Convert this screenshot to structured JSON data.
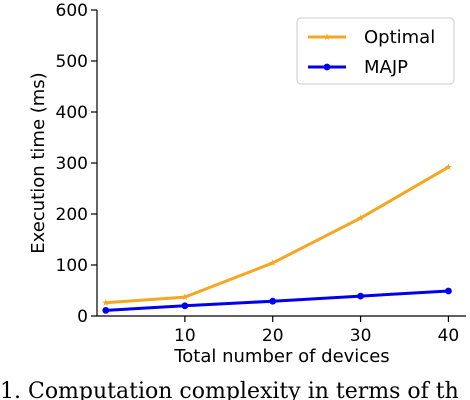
{
  "chart_data": {
    "type": "line",
    "xlabel": "Total number of devices",
    "ylabel": "Execution time (ms)",
    "xlim": [
      0,
      42
    ],
    "ylim": [
      0,
      600
    ],
    "x_ticks": [
      10,
      20,
      30,
      40
    ],
    "y_ticks": [
      0,
      100,
      200,
      300,
      400,
      500,
      600
    ],
    "grid": false,
    "legend_position": "top-right",
    "series": [
      {
        "name": "Optimal",
        "color": "#f5a623",
        "marker": "star",
        "x": [
          1,
          10,
          20,
          30,
          40
        ],
        "y": [
          26,
          37,
          104,
          192,
          292
        ]
      },
      {
        "name": "MAJP",
        "color": "#0000ee",
        "marker": "circle",
        "x": [
          1,
          10,
          20,
          30,
          40
        ],
        "y": [
          11,
          20,
          29,
          39,
          49
        ]
      }
    ]
  },
  "caption_fragment": "1. Computation complexity in terms of th"
}
